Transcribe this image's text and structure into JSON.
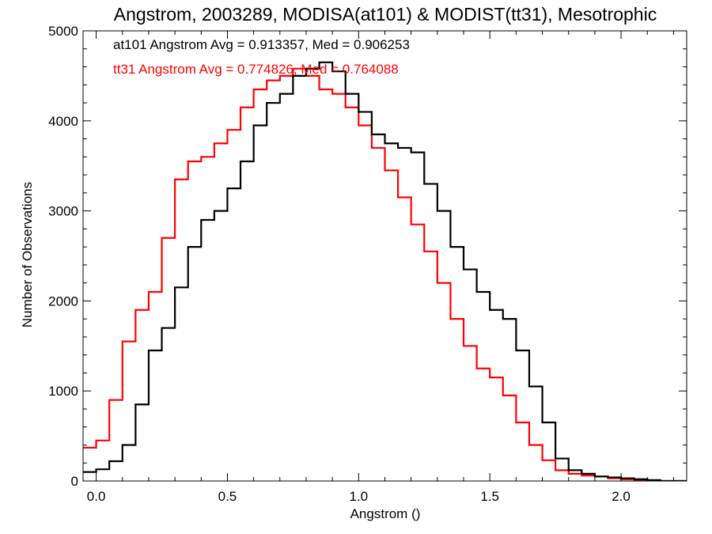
{
  "chart_data": {
    "type": "line",
    "step": true,
    "title": "Angstrom, 2003289, MODISA(at101) & MODIST(tt31), Mesotrophic",
    "xlabel": "Angstrom ()",
    "ylabel": "Number of Observations",
    "xlim": [
      -0.05,
      2.25
    ],
    "ylim": [
      0,
      5000
    ],
    "xticks": [
      0.0,
      0.5,
      1.0,
      1.5,
      2.0
    ],
    "xtick_labels": [
      "0.0",
      "0.5",
      "1.0",
      "1.5",
      "2.0"
    ],
    "yticks": [
      0,
      1000,
      2000,
      3000,
      4000,
      5000
    ],
    "ytick_labels": [
      "0",
      "1000",
      "2000",
      "3000",
      "4000",
      "5000"
    ],
    "grid": false,
    "annotations": [
      {
        "text": "at101 Angstrom Avg = 0.913357, Med = 0.906253",
        "color": "#000000"
      },
      {
        "text": "tt31 Angstrom Avg = 0.774826, Med = 0.764088",
        "color": "#ff0000"
      }
    ],
    "series": [
      {
        "color": "#000000",
        "x": [
          -0.05,
          0.0,
          0.05,
          0.1,
          0.15,
          0.2,
          0.25,
          0.3,
          0.35,
          0.4,
          0.45,
          0.5,
          0.55,
          0.6,
          0.65,
          0.7,
          0.75,
          0.8,
          0.85,
          0.9,
          0.95,
          1.0,
          1.05,
          1.1,
          1.15,
          1.2,
          1.25,
          1.3,
          1.35,
          1.4,
          1.45,
          1.5,
          1.55,
          1.6,
          1.65,
          1.7,
          1.75,
          1.8,
          1.85,
          1.9,
          1.95,
          2.0,
          2.05,
          2.1,
          2.15,
          2.2,
          2.25
        ],
        "y": [
          100,
          130,
          220,
          400,
          850,
          1450,
          1700,
          2150,
          2600,
          2900,
          3000,
          3250,
          3550,
          3950,
          4200,
          4300,
          4500,
          4580,
          4650,
          4550,
          4300,
          4100,
          3850,
          3750,
          3700,
          3650,
          3300,
          3000,
          2600,
          2350,
          2100,
          1900,
          1800,
          1450,
          1050,
          650,
          250,
          120,
          80,
          50,
          40,
          30,
          20,
          10,
          0,
          0,
          0
        ]
      },
      {
        "color": "#ff0000",
        "x": [
          -0.05,
          0.0,
          0.05,
          0.1,
          0.15,
          0.2,
          0.25,
          0.3,
          0.35,
          0.4,
          0.45,
          0.5,
          0.55,
          0.6,
          0.65,
          0.7,
          0.75,
          0.8,
          0.85,
          0.9,
          0.95,
          1.0,
          1.05,
          1.1,
          1.15,
          1.2,
          1.25,
          1.3,
          1.35,
          1.4,
          1.45,
          1.5,
          1.55,
          1.6,
          1.65,
          1.7,
          1.75,
          1.8,
          1.85,
          1.9,
          1.95,
          2.0,
          2.05,
          2.1,
          2.15,
          2.2,
          2.25
        ],
        "y": [
          370,
          450,
          900,
          1550,
          1900,
          2100,
          2700,
          3350,
          3550,
          3600,
          3750,
          3900,
          4150,
          4350,
          4450,
          4500,
          4580,
          4500,
          4350,
          4300,
          4150,
          3950,
          3700,
          3450,
          3150,
          2850,
          2550,
          2200,
          1800,
          1500,
          1250,
          1150,
          950,
          650,
          400,
          230,
          120,
          80,
          60,
          50,
          30,
          20,
          10,
          5,
          0,
          0,
          0
        ]
      }
    ]
  }
}
